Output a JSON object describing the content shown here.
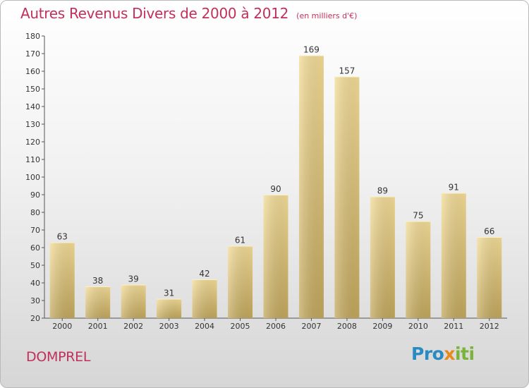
{
  "header": {
    "title": "Autres Revenus Divers de 2000 à 2012",
    "subtitle": "(en milliers d'€)"
  },
  "footer": {
    "city": "DOMPREL",
    "logo_text": "Proxiti"
  },
  "colors": {
    "title": "#c0305a",
    "bar_light": "#f3dc97",
    "bar_dark": "#c2a75c",
    "axis": "#555555"
  },
  "chart_data": {
    "type": "bar",
    "title": "Autres Revenus Divers de 2000 à 2012",
    "subtitle": "(en milliers d'€)",
    "categories": [
      "2000",
      "2001",
      "2002",
      "2003",
      "2004",
      "2005",
      "2006",
      "2007",
      "2008",
      "2009",
      "2010",
      "2011",
      "2012"
    ],
    "values": [
      63,
      38,
      39,
      31,
      42,
      61,
      90,
      169,
      157,
      89,
      75,
      91,
      66
    ],
    "ylim": [
      20,
      180
    ],
    "yticks": [
      20,
      30,
      40,
      50,
      60,
      70,
      80,
      90,
      100,
      110,
      120,
      130,
      140,
      150,
      160,
      170,
      180
    ],
    "grid": false,
    "data_labels": true
  }
}
